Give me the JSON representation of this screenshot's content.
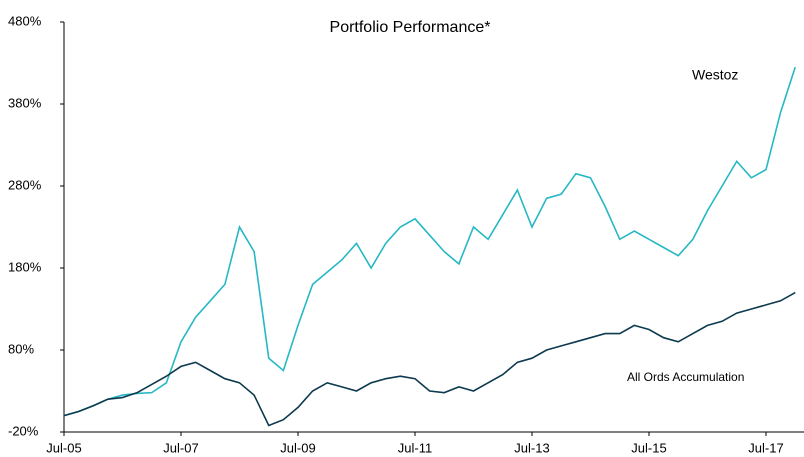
{
  "chart_data": {
    "type": "line",
    "title": "Portfolio Performance*",
    "categories": [
      "Jul-05",
      null,
      null,
      null,
      null,
      null,
      null,
      null,
      "Jul-07",
      null,
      null,
      null,
      null,
      null,
      null,
      null,
      "Jul-09",
      null,
      null,
      null,
      null,
      null,
      null,
      null,
      "Jul-11",
      null,
      null,
      null,
      null,
      null,
      null,
      null,
      "Jul-13",
      null,
      null,
      null,
      null,
      null,
      null,
      null,
      "Jul-15",
      null,
      null,
      null,
      null,
      null,
      null,
      null,
      "Jul-17",
      null,
      null
    ],
    "series": [
      {
        "name": "Westoz",
        "color": "#26b8c4",
        "values": [
          0,
          5,
          12,
          20,
          25,
          27,
          28,
          40,
          90,
          120,
          140,
          160,
          230,
          200,
          70,
          55,
          110,
          160,
          175,
          190,
          210,
          180,
          210,
          230,
          240,
          220,
          200,
          185,
          230,
          215,
          245,
          275,
          230,
          265,
          270,
          295,
          290,
          255,
          215,
          225,
          215,
          205,
          195,
          215,
          250,
          280,
          310,
          290,
          300,
          370,
          425
        ]
      },
      {
        "name": "All Ords Accumulation",
        "color": "#0d3a4f",
        "values": [
          0,
          5,
          12,
          20,
          22,
          28,
          38,
          48,
          60,
          65,
          55,
          45,
          40,
          25,
          -12,
          -5,
          10,
          30,
          40,
          35,
          30,
          40,
          45,
          48,
          45,
          30,
          28,
          35,
          30,
          40,
          50,
          65,
          70,
          80,
          85,
          90,
          95,
          100,
          100,
          110,
          105,
          95,
          90,
          100,
          110,
          115,
          125,
          130,
          135,
          140,
          150
        ]
      }
    ],
    "ylim": [
      -20,
      480
    ],
    "yticks": [
      {
        "value": -20,
        "label": "-20%"
      },
      {
        "value": 80,
        "label": "80%"
      },
      {
        "value": 180,
        "label": "180%"
      },
      {
        "value": 280,
        "label": "280%"
      },
      {
        "value": 380,
        "label": "380%"
      },
      {
        "value": 480,
        "label": "480%"
      }
    ]
  }
}
